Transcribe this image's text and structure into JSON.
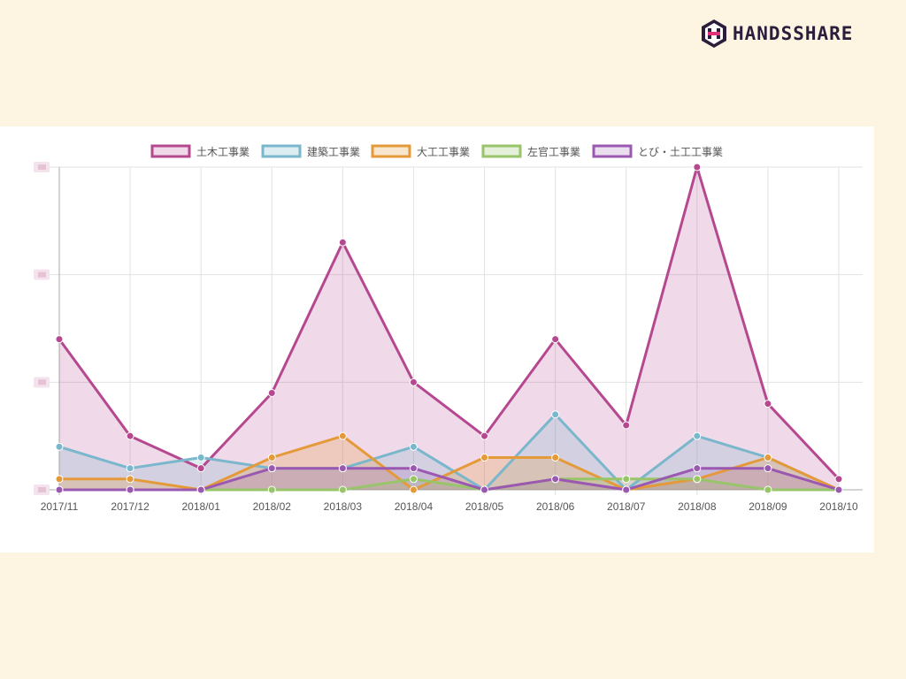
{
  "brand": {
    "name": "HANDSSHARE"
  },
  "chart_data": {
    "type": "area",
    "x": [
      "2017/11",
      "2017/12",
      "2018/01",
      "2018/02",
      "2018/03",
      "2018/04",
      "2018/05",
      "2018/06",
      "2018/07",
      "2018/08",
      "2018/09",
      "2018/10"
    ],
    "ylim": [
      0,
      30
    ],
    "yticks": [
      0,
      10,
      20,
      30
    ],
    "ytick_labels_obscured": true,
    "grid": true,
    "legend": "top",
    "series": [
      {
        "name": "土木工事業",
        "color": "#b5488f",
        "fill": "rgba(181,72,143,0.2)",
        "values": [
          14,
          5,
          2,
          9,
          23,
          10,
          5,
          14,
          6,
          30,
          8,
          1
        ]
      },
      {
        "name": "建築工事業",
        "color": "#7ab7cc",
        "fill": "rgba(122,183,204,0.25)",
        "values": [
          4,
          2,
          3,
          2,
          2,
          4,
          0,
          7,
          0,
          5,
          3,
          0
        ]
      },
      {
        "name": "大工工事業",
        "color": "#e59a3a",
        "fill": "rgba(229,154,58,0.25)",
        "values": [
          1,
          1,
          0,
          3,
          5,
          0,
          3,
          3,
          0,
          1,
          3,
          0
        ]
      },
      {
        "name": "左官工事業",
        "color": "#98c46a",
        "fill": "rgba(152,196,106,0.25)",
        "values": [
          0,
          0,
          0,
          0,
          0,
          1,
          0,
          1,
          1,
          1,
          0,
          0
        ]
      },
      {
        "name": "とび・土工工事業",
        "color": "#9a58b0",
        "fill": "rgba(154,88,176,0.2)",
        "values": [
          0,
          0,
          0,
          2,
          2,
          2,
          0,
          1,
          0,
          2,
          2,
          0
        ]
      }
    ]
  }
}
